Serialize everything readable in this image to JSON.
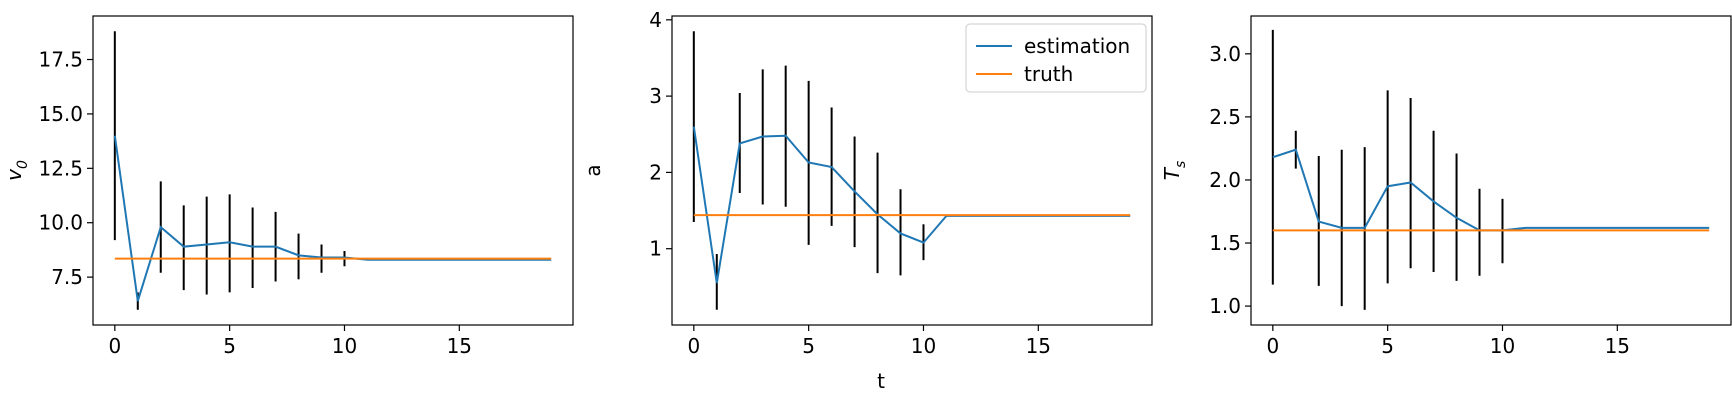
{
  "figure": {
    "xlabel": "t"
  },
  "chart_data": [
    {
      "type": "line",
      "ylabel_main": "v",
      "ylabel_sub": "0",
      "xlim": [
        -0.95,
        19.95
      ],
      "ylim": [
        5.3,
        19.5
      ],
      "xticks": [
        "0",
        "5",
        "10",
        "15"
      ],
      "xtick_values": [
        0,
        5,
        10,
        15
      ],
      "yticks": [
        "7.5",
        "10.0",
        "12.5",
        "15.0",
        "17.5"
      ],
      "ytick_values": [
        7.5,
        10.0,
        12.5,
        15.0,
        17.5
      ],
      "series": [
        {
          "name": "estimation",
          "color": "#1f77b4",
          "x": [
            0,
            1,
            2,
            3,
            4,
            5,
            6,
            7,
            8,
            9,
            10,
            11,
            12,
            13,
            14,
            15,
            16,
            17,
            18,
            19
          ],
          "y": [
            14.0,
            6.4,
            9.8,
            8.9,
            9.0,
            9.1,
            8.9,
            8.9,
            8.5,
            8.4,
            8.4,
            8.3,
            8.3,
            8.3,
            8.3,
            8.3,
            8.3,
            8.3,
            8.3,
            8.3
          ]
        },
        {
          "name": "truth",
          "color": "#ff7f0e",
          "x": [
            0,
            19
          ],
          "y": [
            8.35,
            8.35
          ]
        }
      ],
      "error_bars": {
        "x": [
          0,
          1,
          2,
          3,
          4,
          5,
          6,
          7,
          8,
          9,
          10
        ],
        "low": [
          9.2,
          6.0,
          7.7,
          6.9,
          6.7,
          6.8,
          7.0,
          7.3,
          7.4,
          7.7,
          8.0
        ],
        "high": [
          18.8,
          6.8,
          11.9,
          10.8,
          11.2,
          11.3,
          10.7,
          10.5,
          9.5,
          9.0,
          8.7
        ]
      }
    },
    {
      "type": "line",
      "ylabel_main": "a",
      "ylabel_sub": "",
      "xlim": [
        -0.95,
        19.95
      ],
      "ylim": [
        0.0,
        4.05
      ],
      "xticks": [
        "0",
        "5",
        "10",
        "15"
      ],
      "xtick_values": [
        0,
        5,
        10,
        15
      ],
      "yticks": [
        "1",
        "2",
        "3",
        "4"
      ],
      "ytick_values": [
        1,
        2,
        3,
        4
      ],
      "legend": {
        "location": "top-right",
        "entries": [
          "estimation",
          "truth"
        ]
      },
      "series": [
        {
          "name": "estimation",
          "color": "#1f77b4",
          "x": [
            0,
            1,
            2,
            3,
            4,
            5,
            6,
            7,
            8,
            9,
            10,
            11,
            12,
            13,
            14,
            15,
            16,
            17,
            18,
            19
          ],
          "y": [
            2.6,
            0.55,
            2.38,
            2.47,
            2.48,
            2.13,
            2.07,
            1.75,
            1.45,
            1.2,
            1.08,
            1.43,
            1.43,
            1.43,
            1.43,
            1.43,
            1.43,
            1.43,
            1.43,
            1.43
          ]
        },
        {
          "name": "truth",
          "color": "#ff7f0e",
          "x": [
            0,
            19
          ],
          "y": [
            1.44,
            1.44
          ]
        }
      ],
      "error_bars": {
        "x": [
          0,
          1,
          2,
          3,
          4,
          5,
          6,
          7,
          8,
          9,
          10
        ],
        "low": [
          1.35,
          0.2,
          1.73,
          1.58,
          1.55,
          1.05,
          1.3,
          1.02,
          0.68,
          0.65,
          0.85
        ],
        "high": [
          3.85,
          0.93,
          3.04,
          3.35,
          3.4,
          3.2,
          2.85,
          2.47,
          2.26,
          1.78,
          1.32
        ]
      }
    },
    {
      "type": "line",
      "ylabel_main": "T",
      "ylabel_sub": "s",
      "xlim": [
        -0.95,
        19.95
      ],
      "ylim": [
        0.85,
        3.3
      ],
      "xticks": [
        "0",
        "5",
        "10",
        "15"
      ],
      "xtick_values": [
        0,
        5,
        10,
        15
      ],
      "yticks": [
        "1.0",
        "1.5",
        "2.0",
        "2.5",
        "3.0"
      ],
      "ytick_values": [
        1.0,
        1.5,
        2.0,
        2.5,
        3.0
      ],
      "series": [
        {
          "name": "estimation",
          "color": "#1f77b4",
          "x": [
            0,
            1,
            2,
            3,
            4,
            5,
            6,
            7,
            8,
            9,
            10,
            11,
            12,
            13,
            14,
            15,
            16,
            17,
            18,
            19
          ],
          "y": [
            2.18,
            2.24,
            1.67,
            1.62,
            1.62,
            1.95,
            1.98,
            1.83,
            1.7,
            1.6,
            1.6,
            1.62,
            1.62,
            1.62,
            1.62,
            1.62,
            1.62,
            1.62,
            1.62,
            1.62
          ]
        },
        {
          "name": "truth",
          "color": "#ff7f0e",
          "x": [
            0,
            19
          ],
          "y": [
            1.6,
            1.6
          ]
        }
      ],
      "error_bars": {
        "x": [
          0,
          1,
          2,
          3,
          4,
          5,
          6,
          7,
          8,
          9,
          10
        ],
        "low": [
          1.17,
          2.09,
          1.16,
          1.0,
          0.97,
          1.18,
          1.3,
          1.27,
          1.2,
          1.24,
          1.34
        ],
        "high": [
          3.19,
          2.39,
          2.19,
          2.24,
          2.26,
          2.71,
          2.65,
          2.39,
          2.21,
          1.93,
          1.85
        ]
      }
    }
  ]
}
